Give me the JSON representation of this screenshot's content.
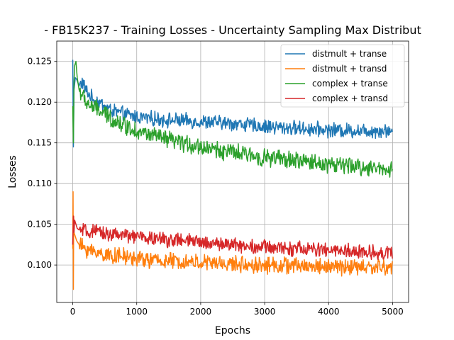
{
  "chart_data": {
    "type": "line",
    "title": "- FB15K237 - Training Losses - Uncertainty Sampling Max Distribut",
    "xlabel": "Epochs",
    "ylabel": "Losses",
    "xlim": [
      -250,
      5250
    ],
    "ylim": [
      0.0954,
      0.1275
    ],
    "xticks": [
      0,
      1000,
      2000,
      3000,
      4000,
      5000
    ],
    "xtick_labels": [
      "0",
      "1000",
      "2000",
      "3000",
      "4000",
      "5000"
    ],
    "yticks": [
      0.1,
      0.105,
      0.11,
      0.115,
      0.12,
      0.125
    ],
    "ytick_labels": [
      "0.100",
      "0.105",
      "0.110",
      "0.115",
      "0.120",
      "0.125"
    ],
    "grid": true,
    "legend_position": "top-right",
    "series": [
      {
        "name": "distmult + transe",
        "color": "#1f77b4",
        "x": [
          0,
          10,
          20,
          40,
          60,
          100,
          150,
          200,
          300,
          400,
          500,
          600,
          800,
          1000,
          1200,
          1500,
          2000,
          2500,
          3000,
          3500,
          4000,
          4500,
          5000
        ],
        "y": [
          0.1252,
          0.1145,
          0.1215,
          0.123,
          0.1228,
          0.122,
          0.1225,
          0.1215,
          0.1205,
          0.12,
          0.1195,
          0.119,
          0.1185,
          0.1182,
          0.118,
          0.1178,
          0.1176,
          0.1174,
          0.117,
          0.1168,
          0.1166,
          0.1165,
          0.1165
        ]
      },
      {
        "name": "distmult + transd",
        "color": "#ff7f0e",
        "x": [
          0,
          5,
          10,
          15,
          20,
          40,
          60,
          100,
          150,
          200,
          300,
          400,
          500,
          600,
          800,
          1000,
          1200,
          1500,
          2000,
          2500,
          3000,
          3500,
          4000,
          4500,
          5000
        ],
        "y": [
          0.102,
          0.109,
          0.097,
          0.106,
          0.104,
          0.1035,
          0.103,
          0.1025,
          0.1022,
          0.102,
          0.1017,
          0.1015,
          0.1013,
          0.1012,
          0.101,
          0.1008,
          0.1006,
          0.1005,
          0.1003,
          0.1001,
          0.1,
          0.0999,
          0.0998,
          0.0997,
          0.0997
        ]
      },
      {
        "name": "complex + transe",
        "color": "#2ca02c",
        "x": [
          0,
          10,
          20,
          30,
          50,
          70,
          100,
          150,
          200,
          300,
          400,
          500,
          600,
          800,
          1000,
          1200,
          1500,
          2000,
          2500,
          3000,
          3500,
          4000,
          4500,
          5000
        ],
        "y": [
          0.1195,
          0.115,
          0.1225,
          0.1245,
          0.125,
          0.123,
          0.1215,
          0.1208,
          0.12,
          0.1195,
          0.119,
          0.1185,
          0.118,
          0.1172,
          0.1165,
          0.116,
          0.1153,
          0.1145,
          0.1138,
          0.1132,
          0.1128,
          0.1124,
          0.112,
          0.1118
        ]
      },
      {
        "name": "complex + transd",
        "color": "#d62728",
        "x": [
          0,
          10,
          20,
          30,
          50,
          70,
          100,
          150,
          200,
          300,
          400,
          500,
          600,
          800,
          1000,
          1200,
          1500,
          2000,
          2500,
          3000,
          3500,
          4000,
          4500,
          5000
        ],
        "y": [
          0.1025,
          0.106,
          0.104,
          0.1055,
          0.105,
          0.1045,
          0.1043,
          0.1042,
          0.1041,
          0.104,
          0.104,
          0.1039,
          0.1038,
          0.1036,
          0.1035,
          0.1033,
          0.1031,
          0.1028,
          0.1025,
          0.1022,
          0.102,
          0.1018,
          0.1016,
          0.1015
        ]
      }
    ]
  }
}
